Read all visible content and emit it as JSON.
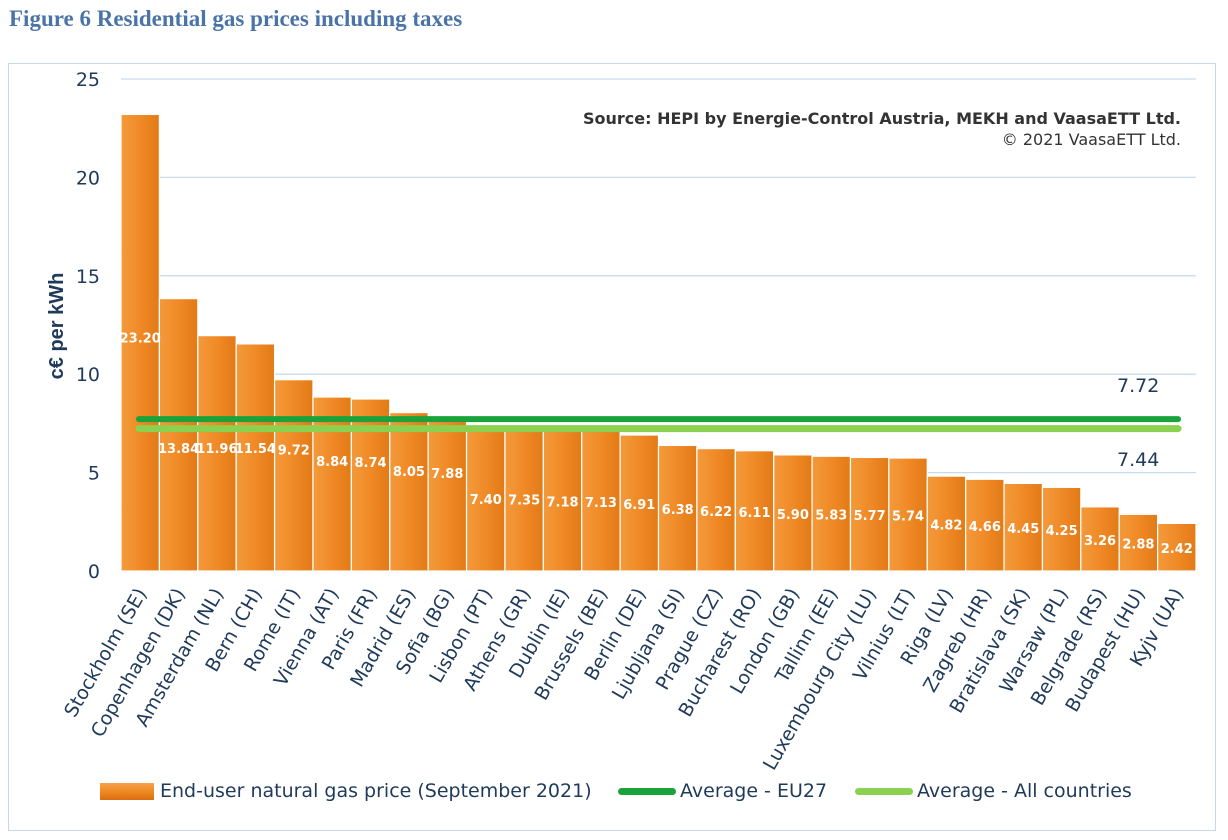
{
  "figure_title": "Figure 6 Residential gas prices including taxes",
  "source": {
    "line1": "Source: HEPI by Energie-Control Austria, MEKH and VaasaETT Ltd.",
    "line2": "© 2021 VaasaETT Ltd."
  },
  "colors": {
    "bar": "#ed8720",
    "avg_eu27": "#1aa33a",
    "avg_all": "#8bd04f",
    "axis_text": "#1f3a5a",
    "grid": "#c6dbee"
  },
  "chart_data": {
    "type": "bar",
    "title": "Figure 6 Residential gas prices including taxes",
    "xlabel": "",
    "ylabel": "c€ per kWh",
    "ylim": [
      0,
      25
    ],
    "yticks": [
      0,
      5,
      10,
      15,
      20,
      25
    ],
    "grid": true,
    "legend_position": "bottom",
    "categories": [
      "Stockholm (SE)",
      "Copenhagen (DK)",
      "Amsterdam (NL)",
      "Bern (CH)",
      "Rome (IT)",
      "Vienna (AT)",
      "Paris (FR)",
      "Madrid (ES)",
      "Sofia (BG)",
      "Lisbon (PT)",
      "Athens (GR)",
      "Dublin (IE)",
      "Brussels (BE)",
      "Berlin (DE)",
      "Ljubljana (SI)",
      "Prague (CZ)",
      "Bucharest (RO)",
      "London (GB)",
      "Tallinn (EE)",
      "Luxembourg City (LU)",
      "Vilnius (LT)",
      "Riga (LV)",
      "Zagreb (HR)",
      "Bratislava (SK)",
      "Warsaw (PL)",
      "Belgrade (RS)",
      "Budapest (HU)",
      "Kyjv (UA)"
    ],
    "series": [
      {
        "name": "End-user natural gas price (September 2021)",
        "values": [
          23.2,
          13.84,
          11.96,
          11.54,
          9.72,
          8.84,
          8.74,
          8.05,
          7.88,
          7.4,
          7.35,
          7.18,
          7.13,
          6.91,
          6.38,
          6.22,
          6.11,
          5.9,
          5.83,
          5.77,
          5.74,
          4.82,
          4.66,
          4.45,
          4.25,
          3.26,
          2.88,
          2.42
        ],
        "labels": [
          "23.20",
          "13.84",
          "11.96",
          "11.54",
          "9.72",
          "8.84",
          "8.74",
          "8.05",
          "7.88",
          "7.40",
          "7.35",
          "7.18",
          "7.13",
          "6.91",
          "6.38",
          "6.22",
          "6.11",
          "5.90",
          "5.83",
          "5.77",
          "5.74",
          "4.82",
          "4.66",
          "4.45",
          "4.25",
          "3.26",
          "2.88",
          "2.42"
        ]
      }
    ],
    "reference_lines": [
      {
        "name": "Average - EU27",
        "value": 7.72,
        "label": "7.72"
      },
      {
        "name": "Average - All countries",
        "value": 7.44,
        "label": "7.44"
      }
    ]
  }
}
